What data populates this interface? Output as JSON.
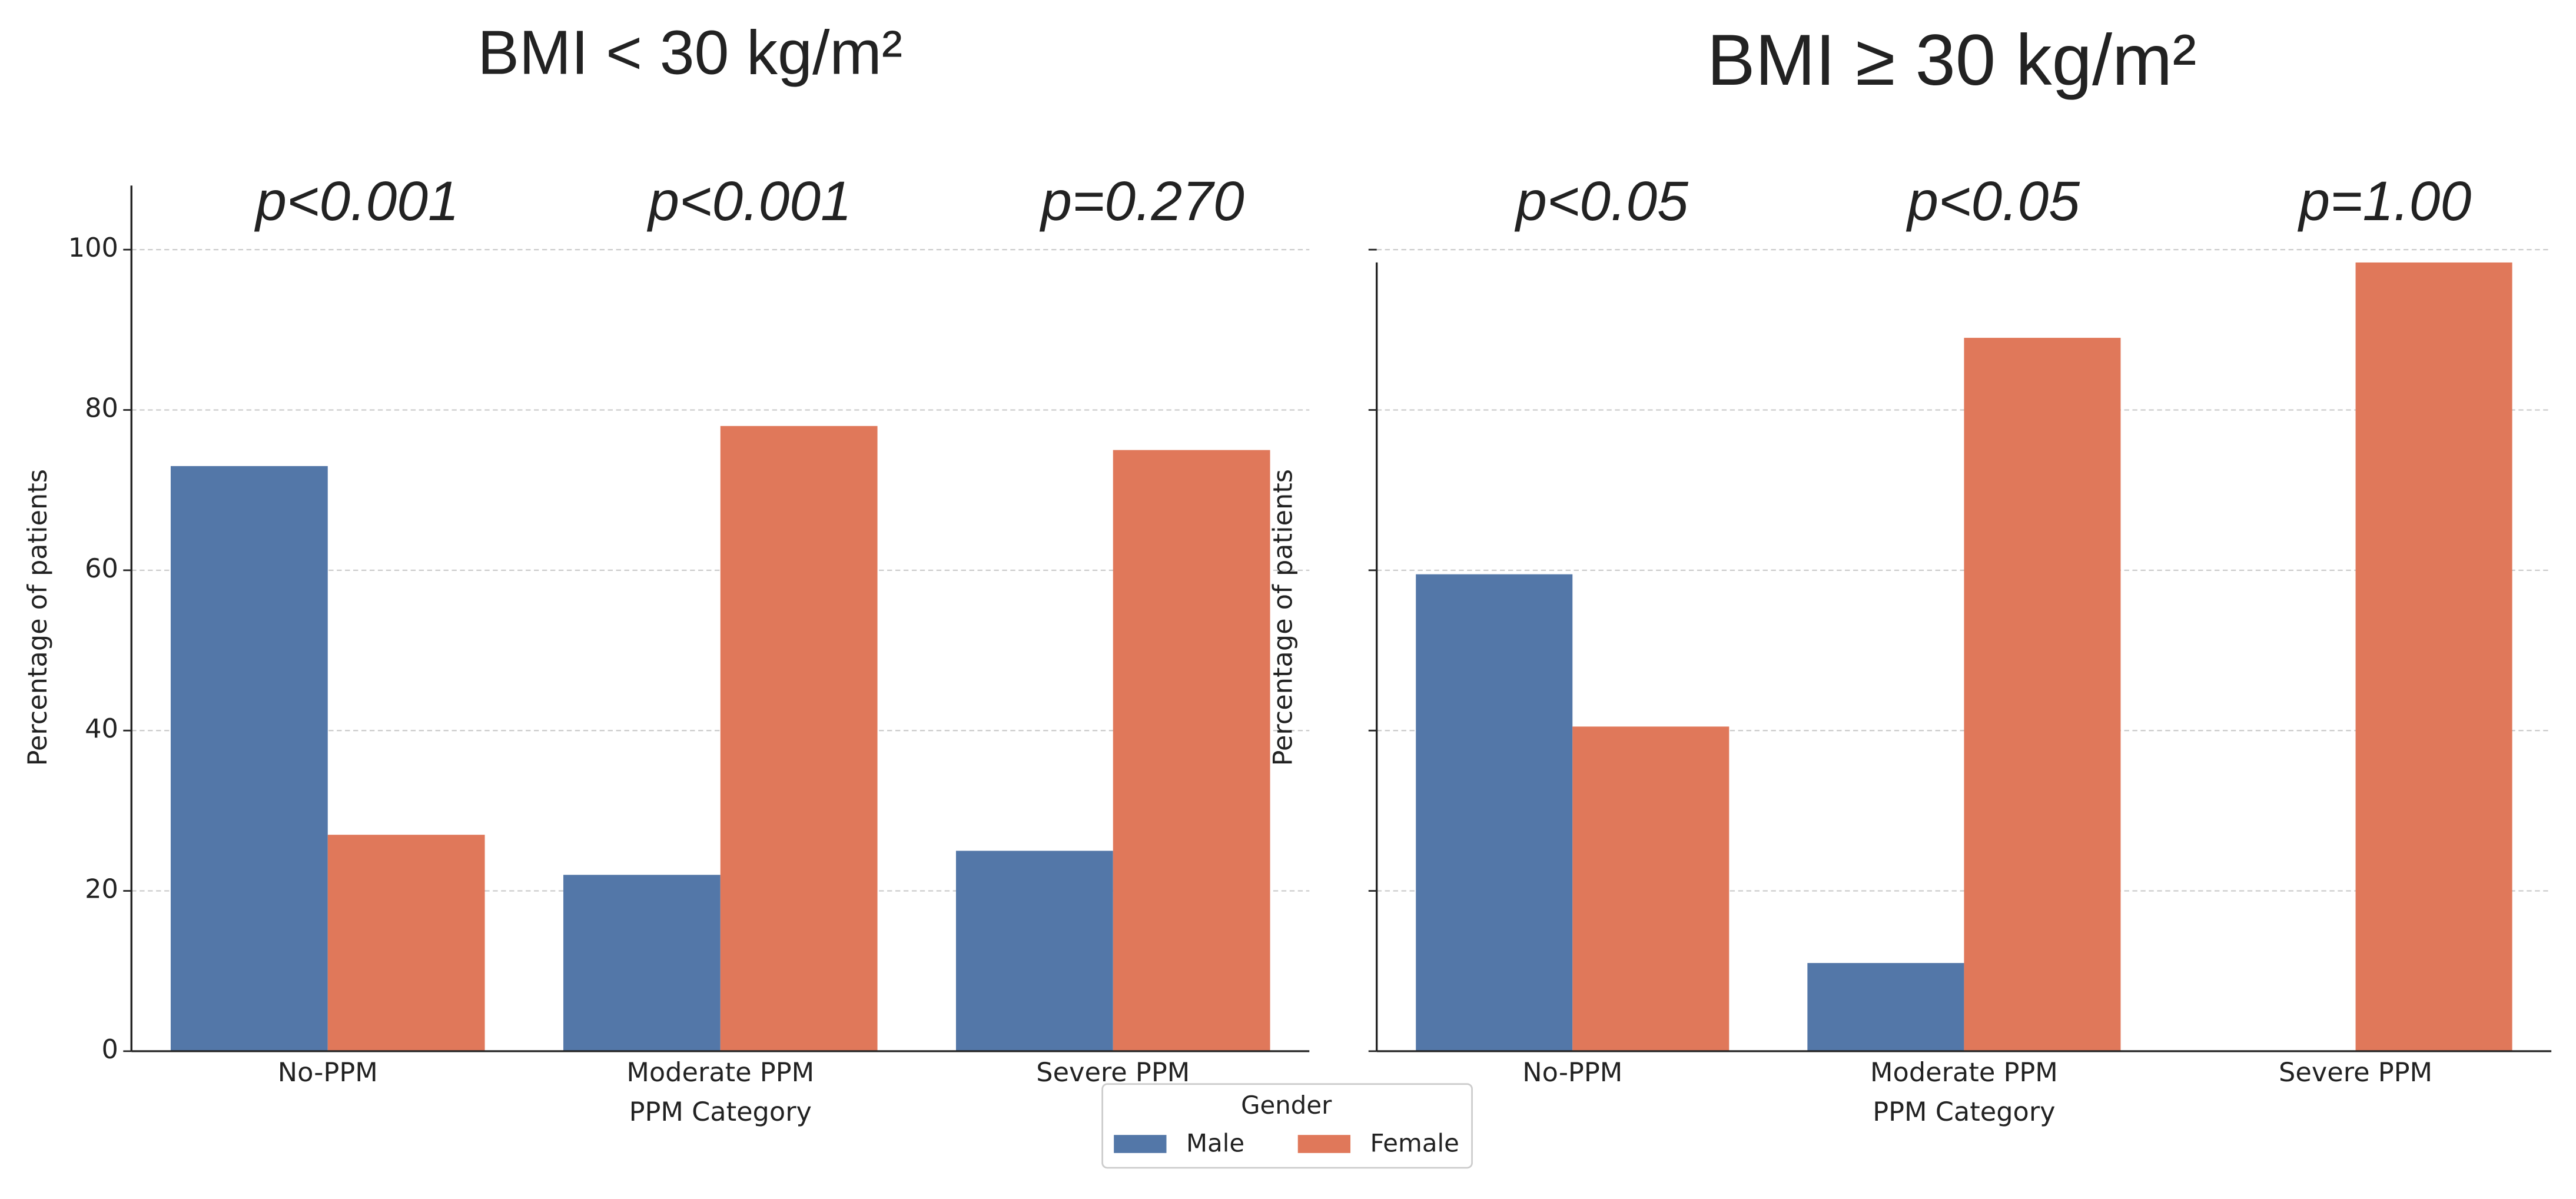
{
  "chart_data": [
    {
      "type": "bar",
      "title": "BMI < 30 kg/m²",
      "x_label": "PPM Category",
      "y_label": "Percentage of patients",
      "categories": [
        "No-PPM",
        "Moderate PPM",
        "Severe PPM"
      ],
      "annotations": [
        "p<0.001",
        "p<0.001",
        "p=0.270"
      ],
      "series": [
        {
          "name": "Male",
          "color": "#5377a8",
          "values": [
            73,
            22,
            25
          ]
        },
        {
          "name": "Female",
          "color": "#e0785a",
          "values": [
            27,
            78,
            75
          ]
        }
      ],
      "ylim": [
        0,
        108
      ],
      "yticks": [
        0,
        20,
        40,
        60,
        80,
        100
      ],
      "ytick_labels": true,
      "grid": true,
      "legend": {
        "title": "Gender",
        "position": "lower center"
      }
    },
    {
      "type": "bar",
      "title": "BMI ≥ 30 kg/m²",
      "x_label": "PPM Category",
      "y_label": "Percentage of patients",
      "categories": [
        "No-PPM",
        "Moderate PPM",
        "Severe PPM"
      ],
      "annotations": [
        "p<0.05",
        "p<0.05",
        "p=1.00"
      ],
      "series": [
        {
          "name": "Male",
          "color": "#5377a8",
          "values": [
            59.5,
            11,
            0
          ]
        },
        {
          "name": "Female",
          "color": "#e0785a",
          "values": [
            40.5,
            89,
            98.4
          ]
        }
      ],
      "ylim": [
        0,
        98.4
      ],
      "yticks": [
        0,
        20,
        40,
        60,
        80,
        100
      ],
      "ytick_labels": false,
      "grid": true
    }
  ]
}
